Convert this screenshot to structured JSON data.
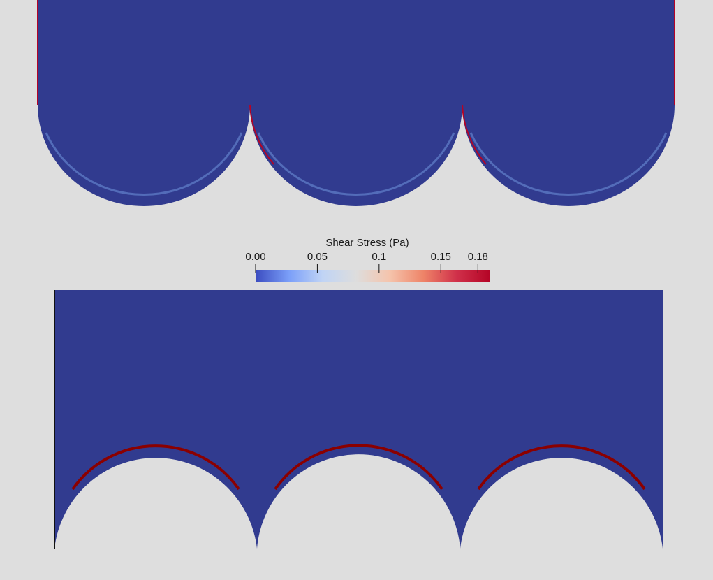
{
  "view": {
    "background_color": "#dedede",
    "field_color": "#313b8f"
  },
  "colorbar": {
    "title": "Shear Stress (Pa)",
    "ticks": [
      {
        "label": "0.00",
        "value": 0.0
      },
      {
        "label": "0.05",
        "value": 0.05
      },
      {
        "label": "0.1",
        "value": 0.1
      },
      {
        "label": "0.15",
        "value": 0.15
      },
      {
        "label": "0.18",
        "value": 0.18
      }
    ],
    "range": [
      0.0,
      0.19
    ],
    "colormap": [
      "#3b4cc0",
      "#7b9ff9",
      "#c0d4f5",
      "#dddddd",
      "#f5c4ac",
      "#ee8468",
      "#d0304a",
      "#b40426"
    ]
  },
  "top_domain": {
    "wall_color": "#b40426",
    "edge_color": "#6a8dd6",
    "arc_count": 3
  },
  "bottom_domain": {
    "wall_color": "#8b0000",
    "arc_count": 3
  }
}
